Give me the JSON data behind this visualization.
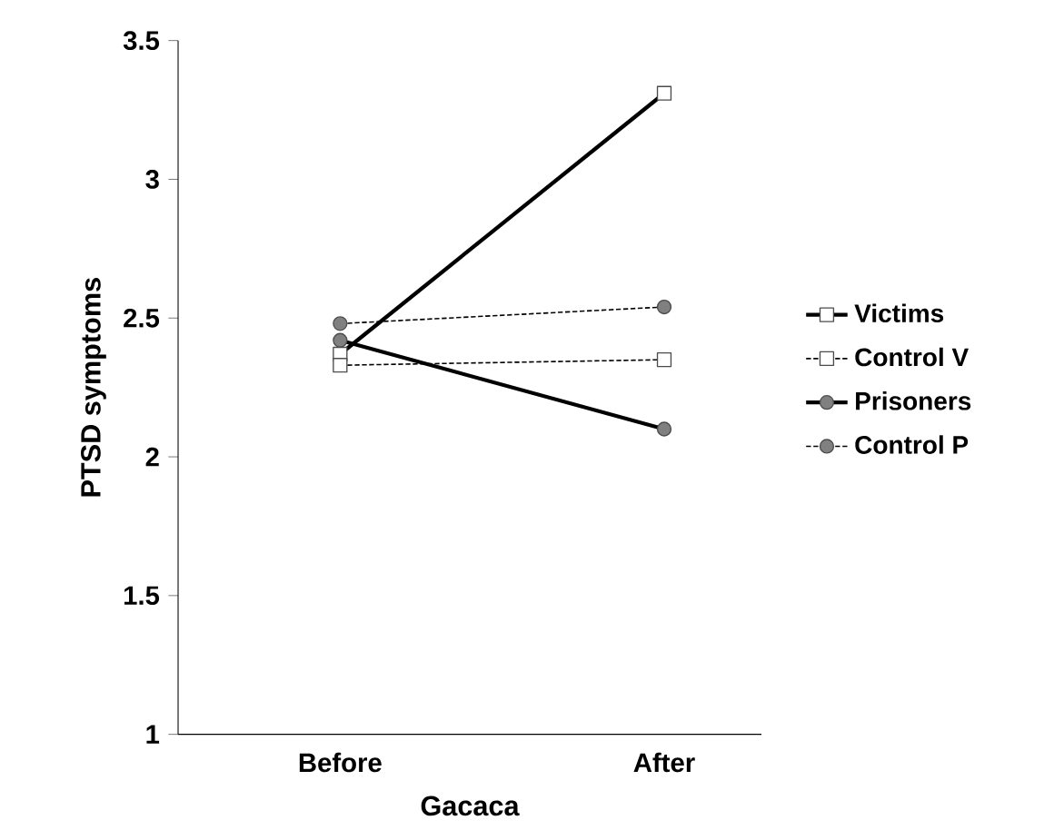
{
  "chart_data": {
    "type": "line",
    "xlabel": "Gacaca",
    "ylabel": "PTSD symptoms",
    "categories": [
      "Before",
      "After"
    ],
    "series": [
      {
        "name": "Victims",
        "color": "#000000",
        "values": [
          2.37,
          3.31
        ],
        "marker": "square",
        "line_style": "solid"
      },
      {
        "name": "Control V",
        "color": "#000000",
        "values": [
          2.33,
          2.35
        ],
        "marker": "square",
        "line_style": "dashed"
      },
      {
        "name": "Prisoners",
        "color": "#000000",
        "values": [
          2.42,
          2.1
        ],
        "marker": "circle",
        "line_style": "solid"
      },
      {
        "name": "Control P",
        "color": "#000000",
        "values": [
          2.48,
          2.54
        ],
        "marker": "circle",
        "line_style": "dashed"
      }
    ],
    "ylim": [
      1,
      3.5
    ],
    "yticks": [
      1,
      1.5,
      2,
      2.5,
      3,
      3.5
    ],
    "legend": "right",
    "grid": false
  }
}
